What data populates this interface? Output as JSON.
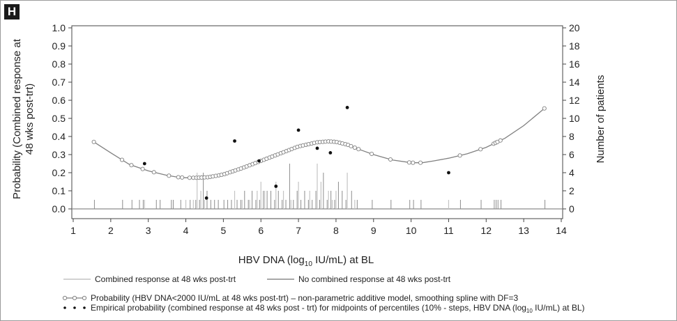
{
  "panel_label": "H",
  "chart_data": {
    "type": "line",
    "xlabel_parts": [
      "HBV DNA (log",
      "10",
      " IU/mL) at BL"
    ],
    "ylabel_left": [
      "Probability (Combined response at",
      "48 wks post-trt)"
    ],
    "ylabel_right": "Number of patients",
    "xlim": [
      1,
      14
    ],
    "ylim_left": [
      0,
      1.0
    ],
    "ylim_right": [
      0,
      20
    ],
    "x_ticks": [
      "1",
      "2",
      "3",
      "4",
      "5",
      "6",
      "7",
      "8",
      "9",
      "10",
      "11",
      "12",
      "13",
      "14"
    ],
    "y_ticks_left": [
      "0.0",
      "0.1",
      "0.2",
      "0.3",
      "0.4",
      "0.5",
      "0.6",
      "0.7",
      "0.8",
      "0.9",
      "1.0"
    ],
    "y_ticks_right": [
      "0",
      "2",
      "4",
      "6",
      "8",
      "10",
      "12",
      "14",
      "16",
      "18",
      "20"
    ],
    "colors": {
      "probability_line": "#808080",
      "responders": "#c4c4c4",
      "non_responders": "#8c8c8c",
      "empirical": "#111111",
      "axis": "#444444"
    },
    "probability_spline": [
      [
        1.55,
        0.37
      ],
      [
        2.0,
        0.31
      ],
      [
        2.5,
        0.245
      ],
      [
        3.0,
        0.21
      ],
      [
        3.5,
        0.185
      ],
      [
        3.8,
        0.175
      ],
      [
        4.0,
        0.172
      ],
      [
        4.3,
        0.172
      ],
      [
        4.6,
        0.175
      ],
      [
        5.0,
        0.19
      ],
      [
        5.5,
        0.225
      ],
      [
        6.0,
        0.265
      ],
      [
        6.5,
        0.305
      ],
      [
        7.0,
        0.345
      ],
      [
        7.5,
        0.368
      ],
      [
        7.8,
        0.373
      ],
      [
        8.0,
        0.37
      ],
      [
        8.3,
        0.355
      ],
      [
        8.6,
        0.33
      ],
      [
        9.0,
        0.3
      ],
      [
        9.5,
        0.27
      ],
      [
        10.0,
        0.255
      ],
      [
        10.3,
        0.255
      ],
      [
        10.6,
        0.265
      ],
      [
        11.0,
        0.28
      ],
      [
        11.5,
        0.305
      ],
      [
        12.0,
        0.34
      ],
      [
        12.5,
        0.39
      ],
      [
        13.0,
        0.46
      ],
      [
        13.55,
        0.555
      ]
    ],
    "spline_markers_x": [
      1.55,
      2.3,
      2.55,
      2.85,
      3.15,
      3.55,
      3.8,
      3.9,
      4.1,
      4.2,
      4.28,
      4.35,
      4.42,
      4.5,
      4.58,
      4.65,
      4.72,
      4.8,
      4.88,
      4.95,
      5.03,
      5.1,
      5.18,
      5.25,
      5.32,
      5.4,
      5.47,
      5.55,
      5.62,
      5.7,
      5.78,
      5.85,
      5.93,
      6.0,
      6.08,
      6.15,
      6.23,
      6.3,
      6.38,
      6.45,
      6.53,
      6.6,
      6.68,
      6.75,
      6.82,
      6.9,
      6.97,
      7.05,
      7.12,
      7.2,
      7.27,
      7.35,
      7.42,
      7.5,
      7.57,
      7.65,
      7.72,
      7.8,
      7.87,
      7.95,
      8.02,
      8.1,
      8.17,
      8.25,
      8.32,
      8.4,
      8.5,
      8.6,
      8.95,
      9.45,
      9.95,
      10.05,
      10.25,
      11.3,
      11.85,
      12.2,
      12.25,
      12.3,
      12.38,
      13.55
    ],
    "empirical_points": [
      [
        2.9,
        0.25
      ],
      [
        4.55,
        0.06
      ],
      [
        5.3,
        0.375
      ],
      [
        5.95,
        0.265
      ],
      [
        6.4,
        0.125
      ],
      [
        7.0,
        0.435
      ],
      [
        7.5,
        0.335
      ],
      [
        7.85,
        0.31
      ],
      [
        8.3,
        0.56
      ],
      [
        11.0,
        0.2
      ]
    ],
    "responders_hist": [
      [
        2.9,
        1
      ],
      [
        4.0,
        1
      ],
      [
        4.2,
        1
      ],
      [
        4.3,
        4
      ],
      [
        4.4,
        2
      ],
      [
        4.5,
        1
      ],
      [
        5.3,
        2
      ],
      [
        5.5,
        1
      ],
      [
        5.7,
        1
      ],
      [
        5.9,
        2
      ],
      [
        6.0,
        3
      ],
      [
        6.1,
        2
      ],
      [
        6.4,
        3
      ],
      [
        6.6,
        2
      ],
      [
        6.8,
        1
      ],
      [
        7.0,
        3
      ],
      [
        7.3,
        2
      ],
      [
        7.5,
        5
      ],
      [
        7.6,
        3
      ],
      [
        7.8,
        2
      ],
      [
        7.9,
        1
      ],
      [
        8.0,
        2
      ],
      [
        8.3,
        4
      ],
      [
        8.5,
        1
      ],
      [
        11.0,
        1
      ]
    ],
    "non_responders_hist": [
      [
        1.55,
        1
      ],
      [
        2.3,
        1
      ],
      [
        2.55,
        1
      ],
      [
        2.75,
        1
      ],
      [
        2.85,
        1
      ],
      [
        3.2,
        1
      ],
      [
        3.3,
        1
      ],
      [
        3.6,
        1
      ],
      [
        3.65,
        1
      ],
      [
        3.85,
        1
      ],
      [
        4.1,
        1
      ],
      [
        4.25,
        1
      ],
      [
        4.35,
        1
      ],
      [
        4.45,
        4
      ],
      [
        4.55,
        2
      ],
      [
        4.65,
        1
      ],
      [
        4.75,
        1
      ],
      [
        4.85,
        1
      ],
      [
        5.0,
        1
      ],
      [
        5.1,
        1
      ],
      [
        5.2,
        1
      ],
      [
        5.35,
        1
      ],
      [
        5.45,
        1
      ],
      [
        5.55,
        2
      ],
      [
        5.65,
        1
      ],
      [
        5.75,
        2
      ],
      [
        5.85,
        1
      ],
      [
        5.95,
        1
      ],
      [
        6.05,
        2
      ],
      [
        6.15,
        2
      ],
      [
        6.25,
        2
      ],
      [
        6.35,
        1
      ],
      [
        6.45,
        2
      ],
      [
        6.55,
        1
      ],
      [
        6.65,
        1
      ],
      [
        6.75,
        5
      ],
      [
        6.85,
        1
      ],
      [
        6.95,
        2
      ],
      [
        7.05,
        1
      ],
      [
        7.15,
        2
      ],
      [
        7.25,
        1
      ],
      [
        7.35,
        1
      ],
      [
        7.45,
        2
      ],
      [
        7.55,
        1
      ],
      [
        7.65,
        4
      ],
      [
        7.75,
        1
      ],
      [
        7.85,
        2
      ],
      [
        7.95,
        1
      ],
      [
        8.05,
        3
      ],
      [
        8.15,
        2
      ],
      [
        8.25,
        1
      ],
      [
        8.4,
        2
      ],
      [
        8.55,
        1
      ],
      [
        8.95,
        1
      ],
      [
        9.45,
        1
      ],
      [
        9.95,
        1
      ],
      [
        10.05,
        1
      ],
      [
        10.25,
        1
      ],
      [
        11.3,
        1
      ],
      [
        11.85,
        1
      ],
      [
        12.2,
        1
      ],
      [
        12.25,
        1
      ],
      [
        12.3,
        1
      ],
      [
        12.38,
        1
      ],
      [
        13.55,
        1
      ]
    ],
    "legend": [
      {
        "kind": "light-line",
        "label": "Combined response at 48 wks post-trt"
      },
      {
        "kind": "dark-line",
        "label": "No combined response at 48 wks post-trt"
      },
      {
        "kind": "marker-line",
        "label": "Probability (HBV DNA<2000 IU/mL at 48 wks post-trt) – non-parametric additive model, smoothing spline with DF=3"
      },
      {
        "kind": "dots",
        "label": "Empirical probability (combined response at 48 wks post - trt) for midpoints of percentiles (10% - steps, HBV DNA (log",
        "sub": "10",
        "label_end": " IU/mL) at BL)"
      }
    ]
  }
}
